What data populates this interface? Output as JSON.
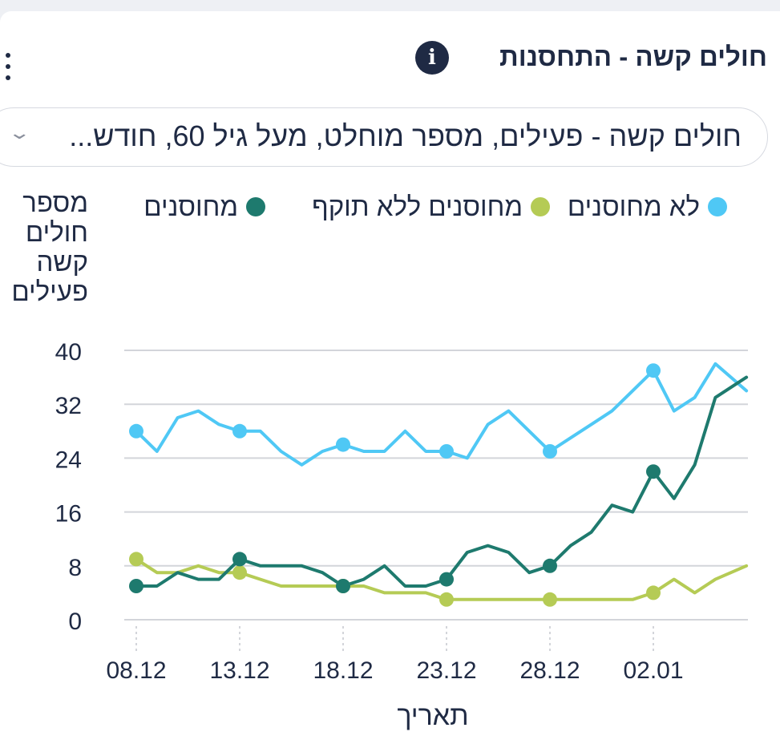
{
  "header": {
    "title": "חולים קשה - התחסנות",
    "info_icon": "info-icon",
    "menu_icon": "more-vertical-icon"
  },
  "selector": {
    "value": "חולים קשה - פעילים, מספר מוחלט, מעל גיל 60, חודש...",
    "icon": "chevron-down-icon"
  },
  "colors": {
    "not_vaccinated": "#4fc8f5",
    "expired": "#b5cb55",
    "vaccinated": "#1e7a6e",
    "grid": "#d3d5da",
    "text": "#1f2a44"
  },
  "chart_data": {
    "type": "line",
    "ylabel": "מספר חולים קשה פעילים",
    "xlabel": "תאריך",
    "ylim": [
      0,
      40
    ],
    "yticks": [
      0,
      8,
      16,
      24,
      32,
      40
    ],
    "x_start_index": 0,
    "x_end_index": 29.5,
    "xticks": [
      {
        "label": "08.12",
        "index": 0
      },
      {
        "label": "13.12",
        "index": 5
      },
      {
        "label": "18.12",
        "index": 10
      },
      {
        "label": "23.12",
        "index": 15
      },
      {
        "label": "28.12",
        "index": 20
      },
      {
        "label": "02.01",
        "index": 25
      }
    ],
    "marker_indices": [
      0,
      5,
      10,
      15,
      20,
      25
    ],
    "series": [
      {
        "name": "לא מחוסנים",
        "key": "not_vaccinated",
        "color": "#4fc8f5",
        "values": [
          28,
          25,
          30,
          31,
          29,
          28,
          28,
          25,
          23,
          25,
          26,
          25,
          25,
          28,
          25,
          25,
          24,
          29,
          31,
          28,
          25,
          27,
          29,
          31,
          34,
          37,
          31,
          33,
          38,
          34
        ]
      },
      {
        "name": "מחוסנים ללא תוקף",
        "key": "expired",
        "color": "#b5cb55",
        "values": [
          9,
          7,
          7,
          8,
          7,
          7,
          6,
          5,
          5,
          5,
          5,
          5,
          4,
          4,
          4,
          3,
          3,
          3,
          3,
          3,
          3,
          3,
          3,
          3,
          3,
          4,
          6,
          4,
          6,
          8
        ]
      },
      {
        "name": "מחוסנים",
        "key": "vaccinated",
        "color": "#1e7a6e",
        "values": [
          5,
          5,
          7,
          6,
          6,
          9,
          8,
          8,
          8,
          7,
          5,
          6,
          8,
          5,
          5,
          6,
          10,
          11,
          10,
          7,
          8,
          11,
          13,
          17,
          16,
          22,
          18,
          23,
          33,
          36
        ]
      }
    ]
  }
}
